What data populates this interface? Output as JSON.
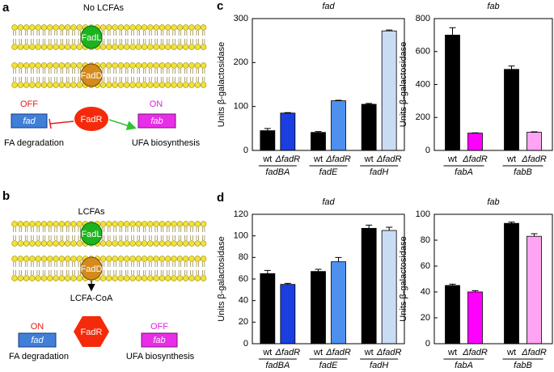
{
  "panel_labels": [
    "a",
    "b",
    "c",
    "d"
  ],
  "diagram_a": {
    "condition": "No LCFAs",
    "fadl": "FadL",
    "fadd": "FadD",
    "fadr": "FadR",
    "fad_state": "OFF",
    "fab_state": "ON",
    "fad_gene": "fad",
    "fab_gene": "fab",
    "fad_process": "FA degradation",
    "fab_process": "UFA biosynthesis"
  },
  "diagram_b": {
    "condition": "LCFAs",
    "fadl": "FadL",
    "fadd": "FadD",
    "product": "LCFA-CoA",
    "fadr": "FadR",
    "fad_state": "ON",
    "fab_state": "OFF",
    "fad_gene": "fad",
    "fab_gene": "fab",
    "fad_process": "FA degradation",
    "fab_process": "UFA biosynthesis"
  },
  "chart_data": [
    {
      "type": "bar",
      "title": "fad",
      "y_label": "Units β-galactosidase",
      "categories": [
        "wt",
        "ΔfadR",
        "wt",
        "ΔfadR",
        "wt",
        "ΔfadR"
      ],
      "groups": [
        "fadBA",
        "fadE",
        "fadH"
      ],
      "values": [
        45,
        85,
        41,
        113,
        105,
        272
      ],
      "errors": [
        5,
        1,
        2,
        1,
        2,
        2
      ],
      "colors": [
        "#000000",
        "#1a3ee0",
        "#000000",
        "#4d90ee",
        "#000000",
        "#c8dcf4"
      ],
      "ylim": [
        0,
        300
      ],
      "yticks": [
        0,
        100,
        200,
        300
      ]
    },
    {
      "type": "bar",
      "title": "fab",
      "y_label": "Units β-galactosidase",
      "categories": [
        "wt",
        "ΔfadR",
        "wt",
        "ΔfadR"
      ],
      "groups": [
        "fabA",
        "fabB"
      ],
      "values": [
        700,
        105,
        492,
        110
      ],
      "errors": [
        45,
        2,
        20,
        3
      ],
      "colors": [
        "#000000",
        "#ff00ff",
        "#000000",
        "#ffa4f2"
      ],
      "ylim": [
        0,
        800
      ],
      "yticks": [
        0,
        200,
        400,
        600,
        800
      ]
    },
    {
      "type": "bar",
      "title": "fad",
      "y_label": "Units β-galactosidase",
      "categories": [
        "wt",
        "ΔfadR",
        "wt",
        "ΔfadR",
        "wt",
        "ΔfadR"
      ],
      "groups": [
        "fadBA",
        "fadE",
        "fadH"
      ],
      "values": [
        65,
        55,
        67,
        76,
        107,
        105
      ],
      "errors": [
        3,
        1,
        2,
        4,
        3,
        3
      ],
      "colors": [
        "#000000",
        "#1a3ee0",
        "#000000",
        "#4d90ee",
        "#000000",
        "#c8dcf4"
      ],
      "ylim": [
        0,
        120
      ],
      "yticks": [
        0,
        20,
        40,
        60,
        80,
        100,
        120
      ]
    },
    {
      "type": "bar",
      "title": "fab",
      "y_label": "Units β-galactosidase",
      "categories": [
        "wt",
        "ΔfadR",
        "wt",
        "ΔfadR"
      ],
      "groups": [
        "fabA",
        "fabB"
      ],
      "values": [
        45,
        40,
        93,
        83
      ],
      "errors": [
        1,
        1,
        1,
        2
      ],
      "colors": [
        "#000000",
        "#ff00ff",
        "#000000",
        "#ffa4f2"
      ],
      "ylim": [
        0,
        100
      ],
      "yticks": [
        0,
        20,
        40,
        60,
        80,
        100
      ]
    }
  ]
}
